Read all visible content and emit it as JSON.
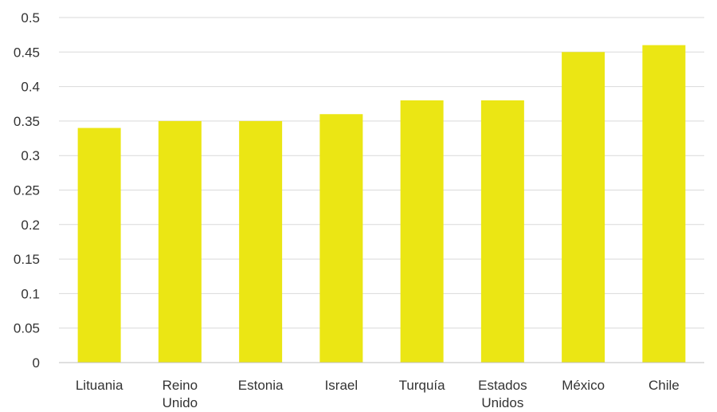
{
  "chart_data": {
    "type": "bar",
    "title": "",
    "xlabel": "",
    "ylabel": "",
    "categories": [
      [
        "Lituania"
      ],
      [
        "Reino",
        "Unido"
      ],
      [
        "Estonia"
      ],
      [
        "Israel"
      ],
      [
        "Turquía"
      ],
      [
        "Estados",
        "Unidos"
      ],
      [
        "México"
      ],
      [
        "Chile"
      ]
    ],
    "values": [
      0.34,
      0.35,
      0.35,
      0.36,
      0.38,
      0.38,
      0.45,
      0.46
    ],
    "ylim": [
      0,
      0.5
    ],
    "yticks": [
      "0",
      "0.05",
      "0.1",
      "0.15",
      "0.2",
      "0.25",
      "0.3",
      "0.35",
      "0.4",
      "0.45",
      "0.5"
    ],
    "grid": true,
    "legend": "none",
    "bar_color": "#ebe614"
  }
}
